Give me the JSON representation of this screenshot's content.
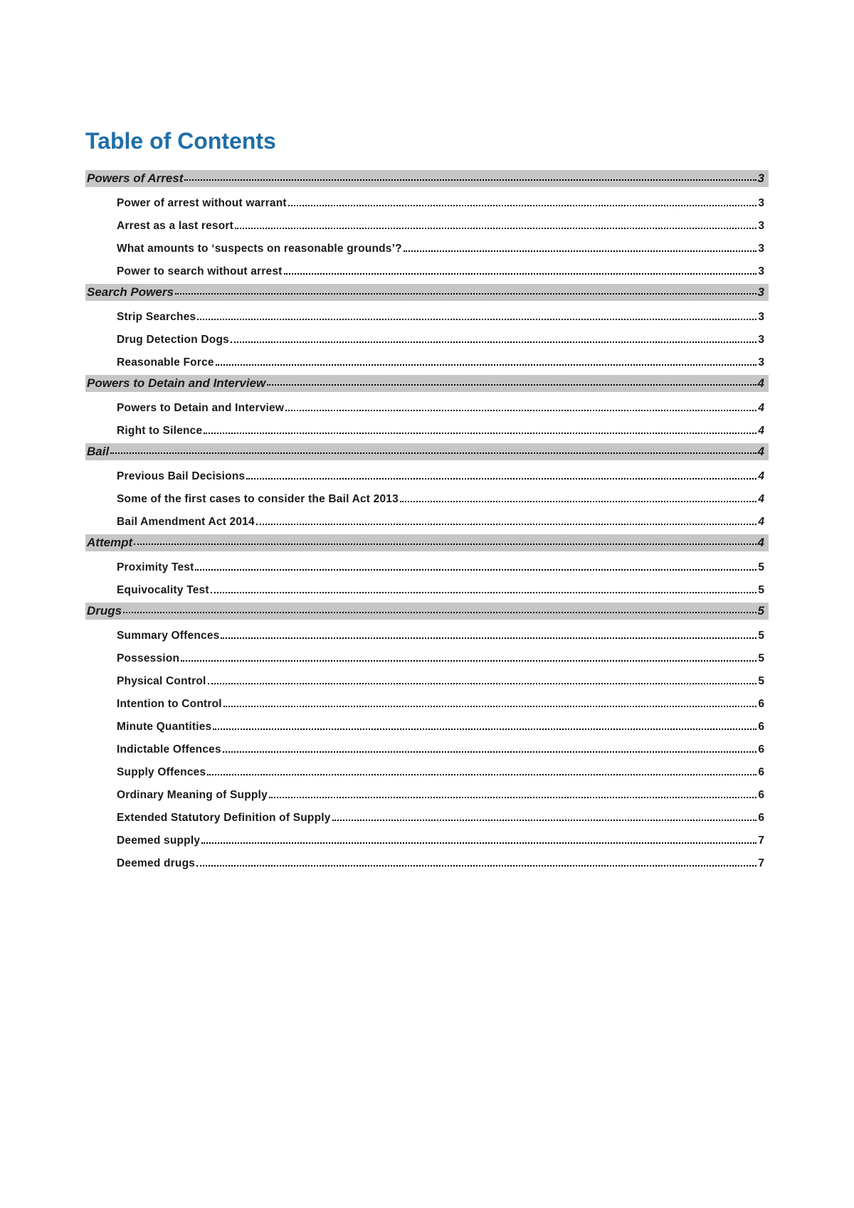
{
  "title": "Table of Contents",
  "colors": {
    "title_color": "#1f6ea8",
    "section_bg": "#c6c6c6",
    "text_color": "#1a1a1a",
    "page_bg": "#ffffff"
  },
  "typography": {
    "title_fontsize": 32,
    "section_fontsize": 17,
    "item_fontsize": 15.5,
    "section_style": "italic bold",
    "item_style": "bold"
  },
  "entries": [
    {
      "level": 1,
      "label": "Powers of Arrest",
      "page": "3"
    },
    {
      "level": 2,
      "label": "Power of arrest without warrant",
      "page": "3"
    },
    {
      "level": 2,
      "label": "Arrest as a last resort",
      "page": "3"
    },
    {
      "level": 2,
      "label": "What amounts to ‘suspects on reasonable grounds’?",
      "page": "3"
    },
    {
      "level": 2,
      "label": "Power to search without arrest",
      "page": "3"
    },
    {
      "level": 1,
      "label": "Search Powers",
      "page": "3"
    },
    {
      "level": 2,
      "label": "Strip Searches",
      "page": "3"
    },
    {
      "level": 2,
      "label": "Drug Detection Dogs",
      "page": "3"
    },
    {
      "level": 2,
      "label": "Reasonable Force",
      "page": "3"
    },
    {
      "level": 1,
      "label": "Powers to Detain and Interview",
      "page": "4"
    },
    {
      "level": 2,
      "label": "Powers to Detain and Interview",
      "page": "4",
      "italic_page": true
    },
    {
      "level": 2,
      "label": "Right to Silence",
      "page": "4",
      "italic_page": true
    },
    {
      "level": 1,
      "label": "Bail",
      "page": "4"
    },
    {
      "level": 2,
      "label": "Previous Bail Decisions",
      "page": "4",
      "italic_page": true
    },
    {
      "level": 2,
      "label": "Some of the first cases to consider the Bail Act 2013",
      "page": "4",
      "italic_page": true
    },
    {
      "level": 2,
      "label": "Bail Amendment Act 2014",
      "page": "4",
      "italic_page": true
    },
    {
      "level": 1,
      "label": "Attempt",
      "page": "4"
    },
    {
      "level": 2,
      "label": "Proximity Test",
      "page": "5"
    },
    {
      "level": 2,
      "label": "Equivocality Test",
      "page": "5"
    },
    {
      "level": 1,
      "label": "Drugs",
      "page": "5"
    },
    {
      "level": 2,
      "label": "Summary Offences",
      "page": "5"
    },
    {
      "level": 2,
      "label": "Possession",
      "page": "5"
    },
    {
      "level": 2,
      "label": "Physical Control",
      "page": "5"
    },
    {
      "level": 2,
      "label": "Intention to Control",
      "page": "6"
    },
    {
      "level": 2,
      "label": "Minute Quantities",
      "page": "6"
    },
    {
      "level": 2,
      "label": "Indictable Offences",
      "page": "6"
    },
    {
      "level": 2,
      "label": "Supply Offences",
      "page": "6"
    },
    {
      "level": 2,
      "label": "Ordinary Meaning of Supply",
      "page": "6"
    },
    {
      "level": 2,
      "label": "Extended Statutory Definition of Supply",
      "page": "6"
    },
    {
      "level": 2,
      "label": "Deemed supply",
      "page": "7"
    },
    {
      "level": 2,
      "label": "Deemed drugs",
      "page": "7"
    }
  ]
}
